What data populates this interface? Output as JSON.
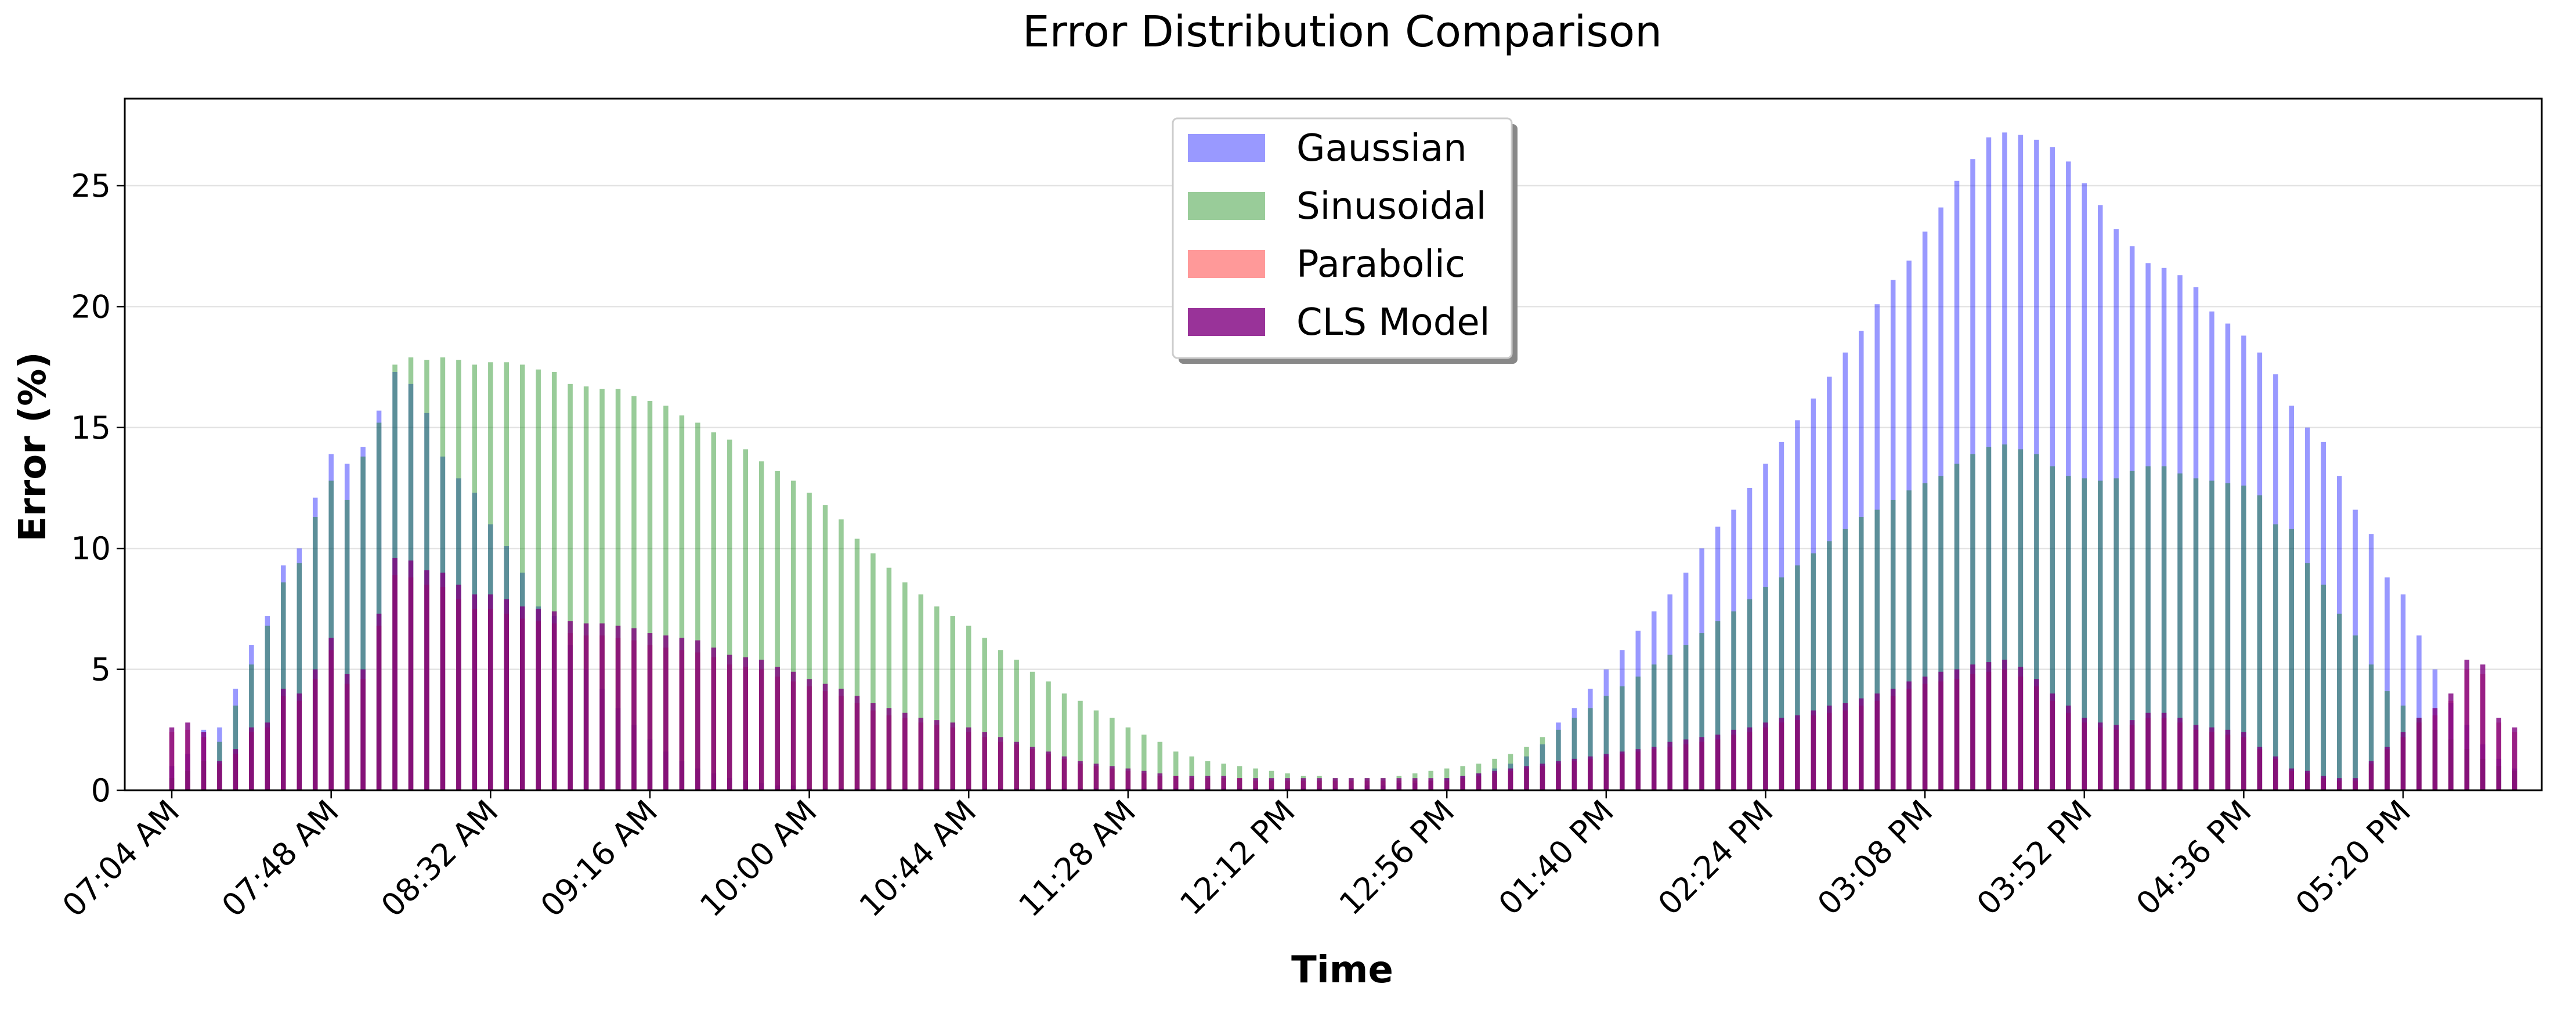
{
  "chart_data": {
    "type": "bar",
    "title": "Error Distribution Comparison",
    "x_label": "Time",
    "y_label": "Error (%)",
    "categories": [
      "07:04 AM",
      null,
      null,
      null,
      null,
      null,
      null,
      null,
      null,
      null,
      "07:48 AM",
      null,
      null,
      null,
      null,
      null,
      null,
      null,
      null,
      null,
      "08:32 AM",
      null,
      null,
      null,
      null,
      null,
      null,
      null,
      null,
      null,
      "09:16 AM",
      null,
      null,
      null,
      null,
      null,
      null,
      null,
      null,
      null,
      "10:00 AM",
      null,
      null,
      null,
      null,
      null,
      null,
      null,
      null,
      null,
      "10:44 AM",
      null,
      null,
      null,
      null,
      null,
      null,
      null,
      null,
      null,
      "11:28 AM",
      null,
      null,
      null,
      null,
      null,
      null,
      null,
      null,
      null,
      "12:12 PM",
      null,
      null,
      null,
      null,
      null,
      null,
      null,
      null,
      null,
      "12:56 PM",
      null,
      null,
      null,
      null,
      null,
      null,
      null,
      null,
      null,
      "01:40 PM",
      null,
      null,
      null,
      null,
      null,
      null,
      null,
      null,
      null,
      "02:24 PM",
      null,
      null,
      null,
      null,
      null,
      null,
      null,
      null,
      null,
      "03:08 PM",
      null,
      null,
      null,
      null,
      null,
      null,
      null,
      null,
      null,
      "03:52 PM",
      null,
      null,
      null,
      null,
      null,
      null,
      null,
      null,
      null,
      "04:36 PM",
      null,
      null,
      null,
      null,
      null,
      null,
      null,
      null,
      null,
      "05:20 PM",
      null,
      null,
      null,
      null,
      null,
      null,
      null
    ],
    "series": [
      {
        "name": "Gaussian",
        "color": "#0000ff",
        "opacity": 0.4,
        "values": [
          1.0,
          1.5,
          2.5,
          2.6,
          4.2,
          6.0,
          7.2,
          9.3,
          10.0,
          12.1,
          13.9,
          13.5,
          14.2,
          15.7,
          17.3,
          16.8,
          15.6,
          13.8,
          12.9,
          12.3,
          11.0,
          10.1,
          9.0,
          7.6,
          7.2,
          6.0,
          5.0,
          4.2,
          3.4,
          2.7,
          2.1,
          1.6,
          1.2,
          0.9,
          0.7,
          0.5,
          0.4,
          0.3,
          0.2,
          0.2,
          0.1,
          0.1,
          0.1,
          0.1,
          0.1,
          0.1,
          0.1,
          0.1,
          0.1,
          0.1,
          0.1,
          0.1,
          0.1,
          0.1,
          0.1,
          0.1,
          0.1,
          0.1,
          0.1,
          0.1,
          0.1,
          0.1,
          0.1,
          0.1,
          0.1,
          0.1,
          0.1,
          0.1,
          0.1,
          0.1,
          0.1,
          0.1,
          0.1,
          0.1,
          0.1,
          0.2,
          0.2,
          0.3,
          0.3,
          0.4,
          0.5,
          0.6,
          0.7,
          0.9,
          1.1,
          1.4,
          1.9,
          2.8,
          3.4,
          4.2,
          5.0,
          5.8,
          6.6,
          7.4,
          8.1,
          9.0,
          10.0,
          10.9,
          11.6,
          12.5,
          13.5,
          14.4,
          15.3,
          16.2,
          17.1,
          18.1,
          19.0,
          20.1,
          21.1,
          21.9,
          23.1,
          24.1,
          25.2,
          26.1,
          27.0,
          27.2,
          27.1,
          26.9,
          26.6,
          26.0,
          25.1,
          24.2,
          23.2,
          22.5,
          21.8,
          21.6,
          21.3,
          20.8,
          19.8,
          19.3,
          18.8,
          18.1,
          17.2,
          15.9,
          15.0,
          14.4,
          13.0,
          11.6,
          10.6,
          8.8,
          8.1,
          6.4,
          5.0,
          3.6,
          2.7,
          1.9,
          1.3,
          0.9
        ]
      },
      {
        "name": "Sinusoidal",
        "color": "#008000",
        "opacity": 0.4,
        "values": [
          0.5,
          0.8,
          1.2,
          2.0,
          3.5,
          5.2,
          6.8,
          8.6,
          9.4,
          11.3,
          12.8,
          12.0,
          13.8,
          15.2,
          17.6,
          17.9,
          17.8,
          17.9,
          17.8,
          17.6,
          17.7,
          17.7,
          17.6,
          17.4,
          17.3,
          16.8,
          16.7,
          16.6,
          16.6,
          16.3,
          16.1,
          15.9,
          15.5,
          15.2,
          14.8,
          14.5,
          14.1,
          13.6,
          13.2,
          12.8,
          12.3,
          11.8,
          11.2,
          10.4,
          9.8,
          9.2,
          8.6,
          8.1,
          7.6,
          7.2,
          6.8,
          6.3,
          5.8,
          5.4,
          4.9,
          4.5,
          4.0,
          3.7,
          3.3,
          3.0,
          2.6,
          2.3,
          2.0,
          1.6,
          1.4,
          1.2,
          1.1,
          1.0,
          0.9,
          0.8,
          0.7,
          0.6,
          0.6,
          0.5,
          0.5,
          0.5,
          0.5,
          0.6,
          0.7,
          0.8,
          0.9,
          1.0,
          1.1,
          1.3,
          1.5,
          1.8,
          2.2,
          2.5,
          3.0,
          3.4,
          3.9,
          4.3,
          4.7,
          5.2,
          5.6,
          6.0,
          6.5,
          7.0,
          7.4,
          7.9,
          8.4,
          8.8,
          9.3,
          9.8,
          10.3,
          10.8,
          11.3,
          11.6,
          12.0,
          12.4,
          12.7,
          13.0,
          13.5,
          13.9,
          14.2,
          14.3,
          14.1,
          13.9,
          13.4,
          13.0,
          12.9,
          12.8,
          12.9,
          13.2,
          13.4,
          13.4,
          13.1,
          12.9,
          12.8,
          12.7,
          12.6,
          12.2,
          11.0,
          10.8,
          9.4,
          8.5,
          7.3,
          6.4,
          5.2,
          4.1,
          3.5,
          3.0,
          2.5,
          2.1,
          1.7,
          1.3,
          1.0,
          0.8
        ]
      },
      {
        "name": "Parabolic",
        "color": "#ff0000",
        "opacity": 0.4,
        "values": [
          2.4,
          2.5,
          2.2,
          1.1,
          1.5,
          2.4,
          2.6,
          3.9,
          3.7,
          4.6,
          5.8,
          4.4,
          4.6,
          6.8,
          8.9,
          8.8,
          8.5,
          8.4,
          7.9,
          7.5,
          7.5,
          7.3,
          7.1,
          7.0,
          6.9,
          6.5,
          6.4,
          6.4,
          6.3,
          6.2,
          6.0,
          5.9,
          5.8,
          5.7,
          5.5,
          5.2,
          5.1,
          5.0,
          4.7,
          4.5,
          4.3,
          4.1,
          3.9,
          3.6,
          3.3,
          3.1,
          3.0,
          2.8,
          2.7,
          2.6,
          2.4,
          2.2,
          2.0,
          1.9,
          1.7,
          1.5,
          1.3,
          1.1,
          1.0,
          0.9,
          0.8,
          0.7,
          0.6,
          0.6,
          0.5,
          0.5,
          0.5,
          0.5,
          0.4,
          0.4,
          0.4,
          0.4,
          0.4,
          0.4,
          0.4,
          0.4,
          0.4,
          0.4,
          0.4,
          0.4,
          0.4,
          0.5,
          0.6,
          0.7,
          0.8,
          0.9,
          1.0,
          1.1,
          1.2,
          1.3,
          1.4,
          1.5,
          1.6,
          1.7,
          1.8,
          1.9,
          2.0,
          2.1,
          2.3,
          2.4,
          2.6,
          2.8,
          2.9,
          3.1,
          3.2,
          3.3,
          3.5,
          3.7,
          3.9,
          4.2,
          4.4,
          4.5,
          4.6,
          4.8,
          4.9,
          5.0,
          4.7,
          4.3,
          3.7,
          3.2,
          2.8,
          2.6,
          2.5,
          2.7,
          3.0,
          3.0,
          2.8,
          2.5,
          2.4,
          2.3,
          2.2,
          1.7,
          1.3,
          0.8,
          0.7,
          0.5,
          0.4,
          0.4,
          1.1,
          1.7,
          2.2,
          2.8,
          3.1,
          3.7,
          5.0,
          4.8,
          2.8,
          2.4
        ]
      },
      {
        "name": "CLS Model",
        "color": "#800080",
        "opacity": 0.8,
        "values": [
          2.6,
          2.8,
          2.4,
          1.2,
          1.7,
          2.6,
          2.8,
          4.2,
          4.0,
          5.0,
          6.3,
          4.8,
          5.0,
          7.3,
          9.6,
          9.5,
          9.1,
          9.0,
          8.5,
          8.1,
          8.1,
          7.9,
          7.6,
          7.5,
          7.4,
          7.0,
          6.9,
          6.9,
          6.8,
          6.7,
          6.5,
          6.4,
          6.3,
          6.2,
          5.9,
          5.6,
          5.5,
          5.4,
          5.1,
          4.9,
          4.6,
          4.4,
          4.2,
          3.9,
          3.6,
          3.4,
          3.2,
          3.0,
          2.9,
          2.8,
          2.6,
          2.4,
          2.2,
          2.0,
          1.8,
          1.6,
          1.4,
          1.2,
          1.1,
          1.0,
          0.9,
          0.8,
          0.7,
          0.6,
          0.6,
          0.6,
          0.6,
          0.5,
          0.5,
          0.5,
          0.5,
          0.5,
          0.5,
          0.5,
          0.5,
          0.5,
          0.5,
          0.5,
          0.5,
          0.5,
          0.5,
          0.6,
          0.7,
          0.8,
          0.9,
          1.0,
          1.1,
          1.2,
          1.3,
          1.4,
          1.5,
          1.6,
          1.7,
          1.8,
          2.0,
          2.1,
          2.2,
          2.3,
          2.5,
          2.6,
          2.8,
          3.0,
          3.1,
          3.3,
          3.5,
          3.6,
          3.8,
          4.0,
          4.2,
          4.5,
          4.7,
          4.9,
          5.0,
          5.2,
          5.3,
          5.4,
          5.1,
          4.6,
          4.0,
          3.5,
          3.0,
          2.8,
          2.7,
          2.9,
          3.2,
          3.2,
          3.0,
          2.7,
          2.6,
          2.5,
          2.4,
          1.8,
          1.4,
          0.9,
          0.8,
          0.6,
          0.5,
          0.5,
          1.2,
          1.8,
          2.4,
          3.0,
          3.4,
          4.0,
          5.4,
          5.2,
          3.0,
          2.6
        ]
      }
    ],
    "ylim": [
      0,
      28.6
    ],
    "yticks": [
      0,
      5,
      10,
      15,
      20,
      25
    ],
    "grid": true,
    "legend": "upper center"
  }
}
